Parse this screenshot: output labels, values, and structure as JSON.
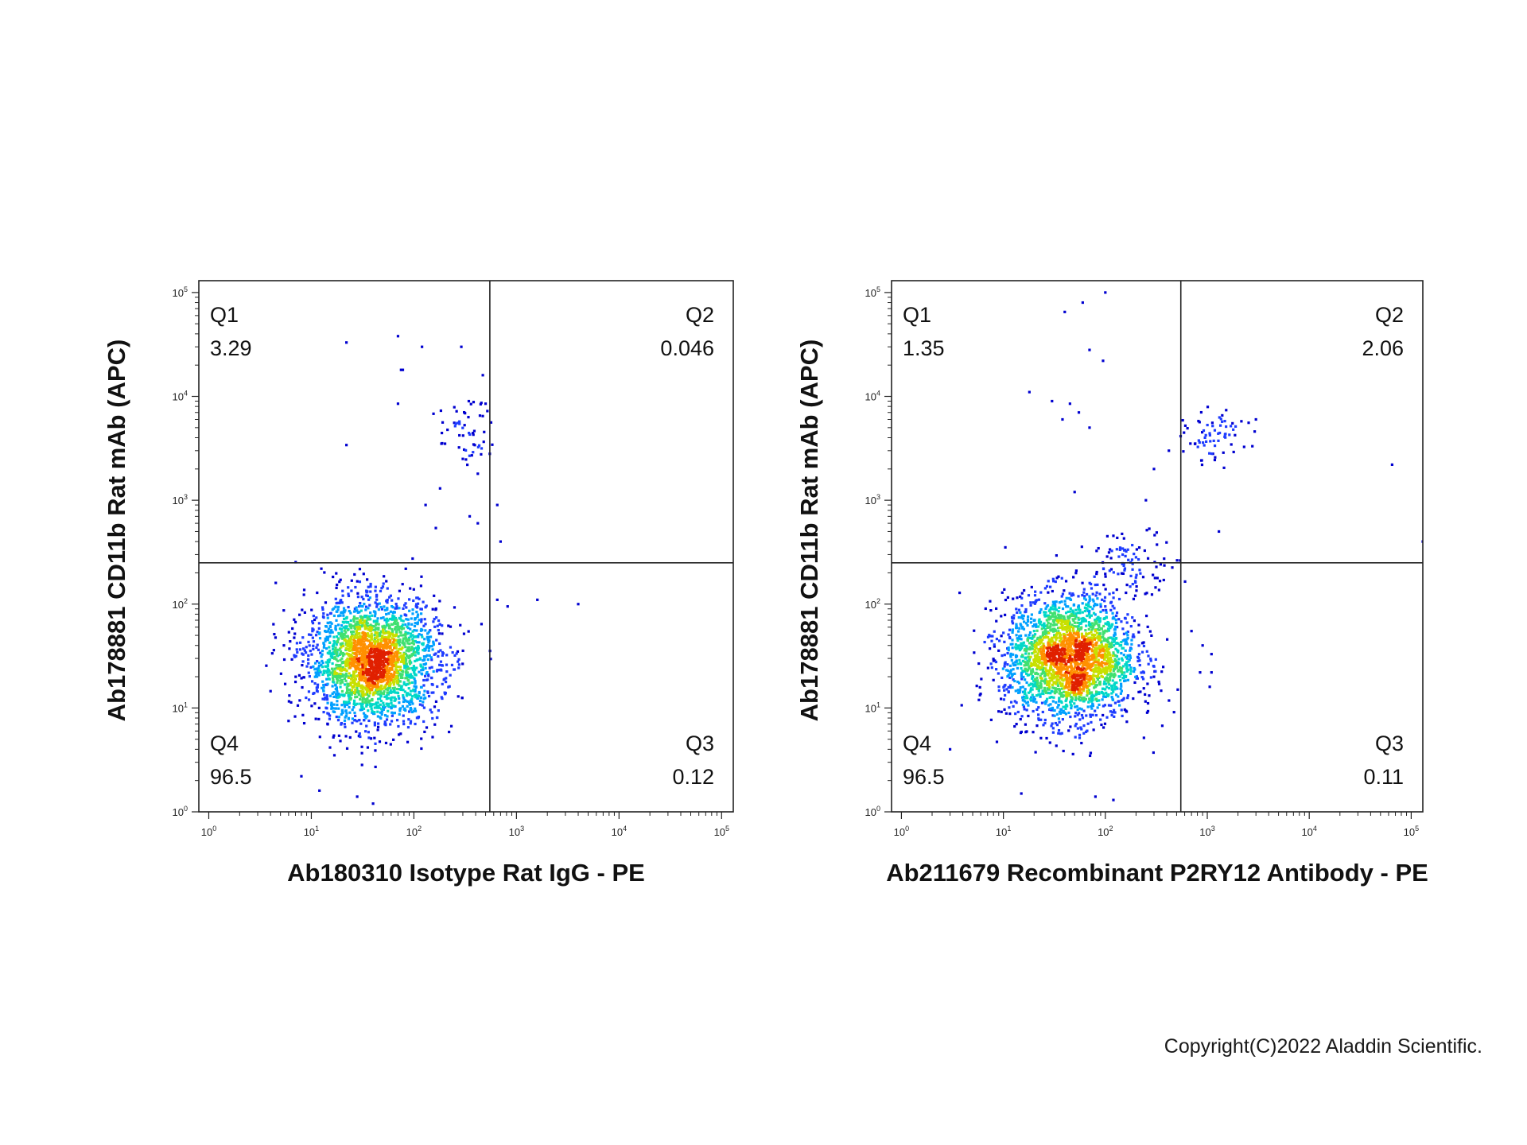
{
  "chart_data": [
    {
      "type": "scatter",
      "title": "",
      "xlabel": "Ab180310 Isotype Rat IgG - PE",
      "ylabel": "Ab178881 CD11b Rat mAb (APC)",
      "xscale": "log",
      "yscale": "log",
      "xlim": [
        0.8,
        130000
      ],
      "ylim": [
        1,
        130000
      ],
      "x_ticks": [
        "10^0",
        "10^1",
        "10^2",
        "10^3",
        "10^4",
        "10^5"
      ],
      "y_ticks": [
        "10^0",
        "10^1",
        "10^2",
        "10^3",
        "10^4",
        "10^5"
      ],
      "gate": {
        "x": 550,
        "y": 250
      },
      "quadrants": [
        {
          "name": "Q1",
          "value": "3.29",
          "position": "top-left"
        },
        {
          "name": "Q2",
          "value": "0.046",
          "position": "top-right"
        },
        {
          "name": "Q3",
          "value": "0.12",
          "position": "bottom-right"
        },
        {
          "name": "Q4",
          "value": "96.5",
          "position": "bottom-left"
        }
      ],
      "density_colors": [
        "#0000d0",
        "#1e3cff",
        "#00a0ff",
        "#00d8c8",
        "#40e070",
        "#c8e000",
        "#ff9000",
        "#e02000"
      ],
      "clusters": [
        {
          "center": [
            40,
            28
          ],
          "spread": [
            0.32,
            0.3
          ],
          "count": 2600
        },
        {
          "center": [
            320,
            4500
          ],
          "spread": [
            0.13,
            0.16
          ],
          "count": 55
        }
      ],
      "outliers": [
        [
          22,
          33000
        ],
        [
          70,
          38000
        ],
        [
          120,
          30000
        ],
        [
          290,
          30000
        ],
        [
          75,
          18000
        ],
        [
          78,
          18000
        ],
        [
          22,
          3400
        ],
        [
          70,
          8500
        ],
        [
          470,
          16000
        ],
        [
          500,
          8500
        ],
        [
          650,
          900
        ],
        [
          700,
          400
        ],
        [
          650,
          110
        ],
        [
          820,
          95
        ],
        [
          1600,
          110
        ],
        [
          4000,
          100
        ],
        [
          4.5,
          160
        ],
        [
          8,
          2.2
        ],
        [
          12,
          1.6
        ],
        [
          28,
          1.4
        ],
        [
          40,
          1.2
        ],
        [
          6,
          7.5
        ],
        [
          300,
          2500
        ],
        [
          420,
          1800
        ],
        [
          180,
          1300
        ],
        [
          420,
          600
        ],
        [
          350,
          700
        ],
        [
          130,
          900
        ]
      ]
    },
    {
      "type": "scatter",
      "title": "",
      "xlabel": "Ab211679 Recombinant P2RY12 Antibody - PE",
      "ylabel": "Ab178881 CD11b Rat mAb (APC)",
      "xscale": "log",
      "yscale": "log",
      "xlim": [
        0.8,
        130000
      ],
      "ylim": [
        1,
        130000
      ],
      "x_ticks": [
        "10^0",
        "10^1",
        "10^2",
        "10^3",
        "10^4",
        "10^5"
      ],
      "y_ticks": [
        "10^0",
        "10^1",
        "10^2",
        "10^3",
        "10^4",
        "10^5"
      ],
      "gate": {
        "x": 550,
        "y": 250
      },
      "quadrants": [
        {
          "name": "Q1",
          "value": "1.35",
          "position": "top-left"
        },
        {
          "name": "Q2",
          "value": "2.06",
          "position": "top-right"
        },
        {
          "name": "Q3",
          "value": "0.11",
          "position": "bottom-right"
        },
        {
          "name": "Q4",
          "value": "96.5",
          "position": "bottom-left"
        }
      ],
      "density_colors": [
        "#0000d0",
        "#1e3cff",
        "#00a0ff",
        "#00d8c8",
        "#40e070",
        "#c8e000",
        "#ff9000",
        "#e02000"
      ],
      "clusters": [
        {
          "center": [
            45,
            30
          ],
          "spread": [
            0.32,
            0.3
          ],
          "count": 2600
        },
        {
          "center": [
            1200,
            4000
          ],
          "spread": [
            0.15,
            0.12
          ],
          "count": 70
        },
        {
          "center": [
            190,
            260
          ],
          "spread": [
            0.22,
            0.14
          ],
          "count": 90
        }
      ],
      "outliers": [
        [
          40,
          65000
        ],
        [
          60,
          80000
        ],
        [
          100,
          100000
        ],
        [
          70,
          28000
        ],
        [
          95,
          22000
        ],
        [
          18,
          11000
        ],
        [
          30,
          9000
        ],
        [
          45,
          8500
        ],
        [
          55,
          7000
        ],
        [
          38,
          6000
        ],
        [
          70,
          5000
        ],
        [
          65000,
          2200
        ],
        [
          130000,
          400
        ],
        [
          1300,
          500
        ],
        [
          700,
          55
        ],
        [
          900,
          40
        ],
        [
          1100,
          33
        ],
        [
          850,
          22
        ],
        [
          1100,
          22
        ],
        [
          3,
          4
        ],
        [
          15,
          1.5
        ],
        [
          80,
          1.4
        ],
        [
          120,
          1.3
        ],
        [
          300,
          2000
        ],
        [
          250,
          1000
        ],
        [
          50,
          1200
        ],
        [
          420,
          3000
        ],
        [
          3000,
          6000
        ]
      ]
    }
  ],
  "footer": {
    "copyright": "Copyright(C)2022 Aladdin Scientific."
  }
}
